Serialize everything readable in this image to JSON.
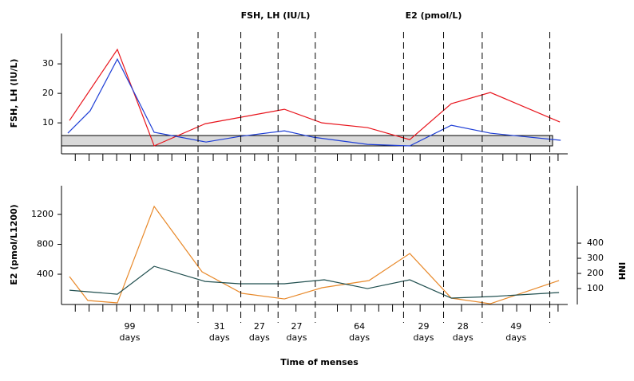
{
  "chart_data": [
    {
      "type": "line",
      "ylabel": "FSH, LH (IU/L)",
      "annotations": [
        "FSH, LH (IU/L)",
        "E2 (pmol/L)"
      ],
      "xlim": [
        0,
        367
      ],
      "xticks": [
        10,
        20,
        30,
        40,
        50,
        60,
        70,
        80,
        90,
        110,
        120,
        140,
        150,
        170,
        200,
        210,
        220,
        230,
        240,
        260,
        290,
        320,
        330,
        340,
        360
      ],
      "ylim": [
        -0.5,
        40.3
      ],
      "yticks": [
        10,
        20,
        30
      ],
      "band": {
        "x": [
          0,
          356
        ],
        "y": [
          2.2,
          5.7
        ],
        "color": "#d9d9d9"
      },
      "series": [
        {
          "color": "#e8141c",
          "x": [
            5.8,
            40.5,
            67.2,
            104.2,
            161.6,
            188.8,
            221.8,
            252.5,
            282.6,
            310.9,
            361.3
          ],
          "values": [
            10.8,
            34.9,
            2.2,
            9.7,
            14.6,
            10.0,
            8.4,
            4.3,
            16.5,
            20.3,
            10.3
          ]
        },
        {
          "color": "#1f3fd6",
          "x": [
            4.6,
            20.8,
            40.5,
            67.2,
            104.8,
            129.1,
            161.6,
            183,
            221.8,
            252.5,
            282.6,
            310.9,
            361.9
          ],
          "values": [
            6.5,
            14.1,
            31.6,
            6.8,
            3.5,
            5.4,
            7.3,
            5.1,
            2.7,
            2.2,
            9.2,
            6.5,
            4.1
          ]
        }
      ]
    },
    {
      "type": "line",
      "ylabel": "E2 (pmol/L1200)",
      "y2label": "INH",
      "xlim": [
        0,
        367
      ],
      "xticks": [
        10,
        20,
        30,
        40,
        50,
        60,
        70,
        80,
        90,
        110,
        120,
        140,
        150,
        170,
        200,
        210,
        220,
        230,
        240,
        260,
        290,
        320,
        330,
        340,
        360
      ],
      "ylim": [
        -5,
        1584
      ],
      "yticks": [
        400,
        800,
        1200
      ],
      "y2lim": [
        -5,
        779
      ],
      "y2ticks": [
        100,
        200,
        300,
        400
      ],
      "series": [
        {
          "color": "#e8892a",
          "x": [
            5.8,
            19.1,
            40.5,
            67.2,
            101.9,
            130.8,
            161.6,
            188.8,
            222.9,
            252.5,
            282.6,
            310.9,
            360.7
          ],
          "values": [
            368,
            48,
            16,
            1307,
            432,
            144,
            69,
            219,
            315,
            677,
            80,
            5,
            315
          ]
        },
        {
          "color": "#1f4e4e",
          "axis": "y2",
          "x": [
            5.8,
            40.5,
            67.2,
            104.2,
            129.1,
            161.6,
            190.5,
            221.8,
            252.5,
            282.6,
            310.9,
            360.7
          ],
          "values": [
            89,
            63,
            247,
            147,
            132,
            132,
            158,
            100,
            158,
            37,
            47,
            74
          ]
        }
      ]
    }
  ],
  "timeline": {
    "markers": [
      99,
      130,
      157,
      184,
      248,
      277,
      305,
      354
    ],
    "intervals": [
      "99 days",
      "31 days",
      "27 days",
      "27 days",
      "64 days",
      "29 days",
      "28 days",
      "49 days"
    ],
    "xlabel": "Time of menses"
  }
}
